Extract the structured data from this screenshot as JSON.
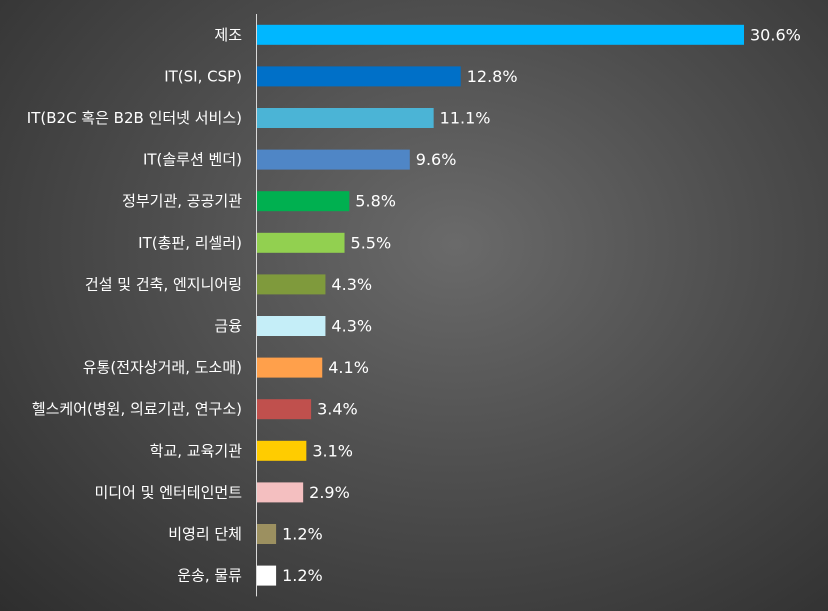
{
  "chart_data": {
    "type": "bar",
    "orientation": "horizontal",
    "title": "",
    "xlabel": "",
    "ylabel": "",
    "xlim": [
      0,
      30.6
    ],
    "grid": false,
    "legend": "none",
    "categories": [
      "제조",
      "IT(SI, CSP)",
      "IT(B2C 혹은 B2B 인터넷 서비스)",
      "IT(솔루션 벤더)",
      "정부기관, 공공기관",
      "IT(총판, 리셀러)",
      "건설 및 건축, 엔지니어링",
      "금융",
      "유통(전자상거래, 도소매)",
      "헬스케어(병원, 의료기관, 연구소)",
      "학교, 교육기관",
      "미디어 및 엔터테인먼트",
      "비영리 단체",
      "운송, 물류"
    ],
    "values": [
      30.6,
      12.8,
      11.1,
      9.6,
      5.8,
      5.5,
      4.3,
      4.3,
      4.1,
      3.4,
      3.1,
      2.9,
      1.2,
      1.2
    ],
    "value_labels": [
      "30.6%",
      "12.8%",
      "11.1%",
      "9.6%",
      "5.8%",
      "5.5%",
      "4.3%",
      "4.3%",
      "4.1%",
      "3.4%",
      "3.1%",
      "2.9%",
      "1.2%",
      "1.2%"
    ],
    "colors": [
      "#00B7FF",
      "#0070C8",
      "#4BB4D6",
      "#4F86C6",
      "#00B050",
      "#92D050",
      "#7F9A3C",
      "#C5EEF8",
      "#FFA04B",
      "#C0504D",
      "#FFCC00",
      "#F4BFC0",
      "#9C9060",
      "#FFFFFF"
    ]
  }
}
